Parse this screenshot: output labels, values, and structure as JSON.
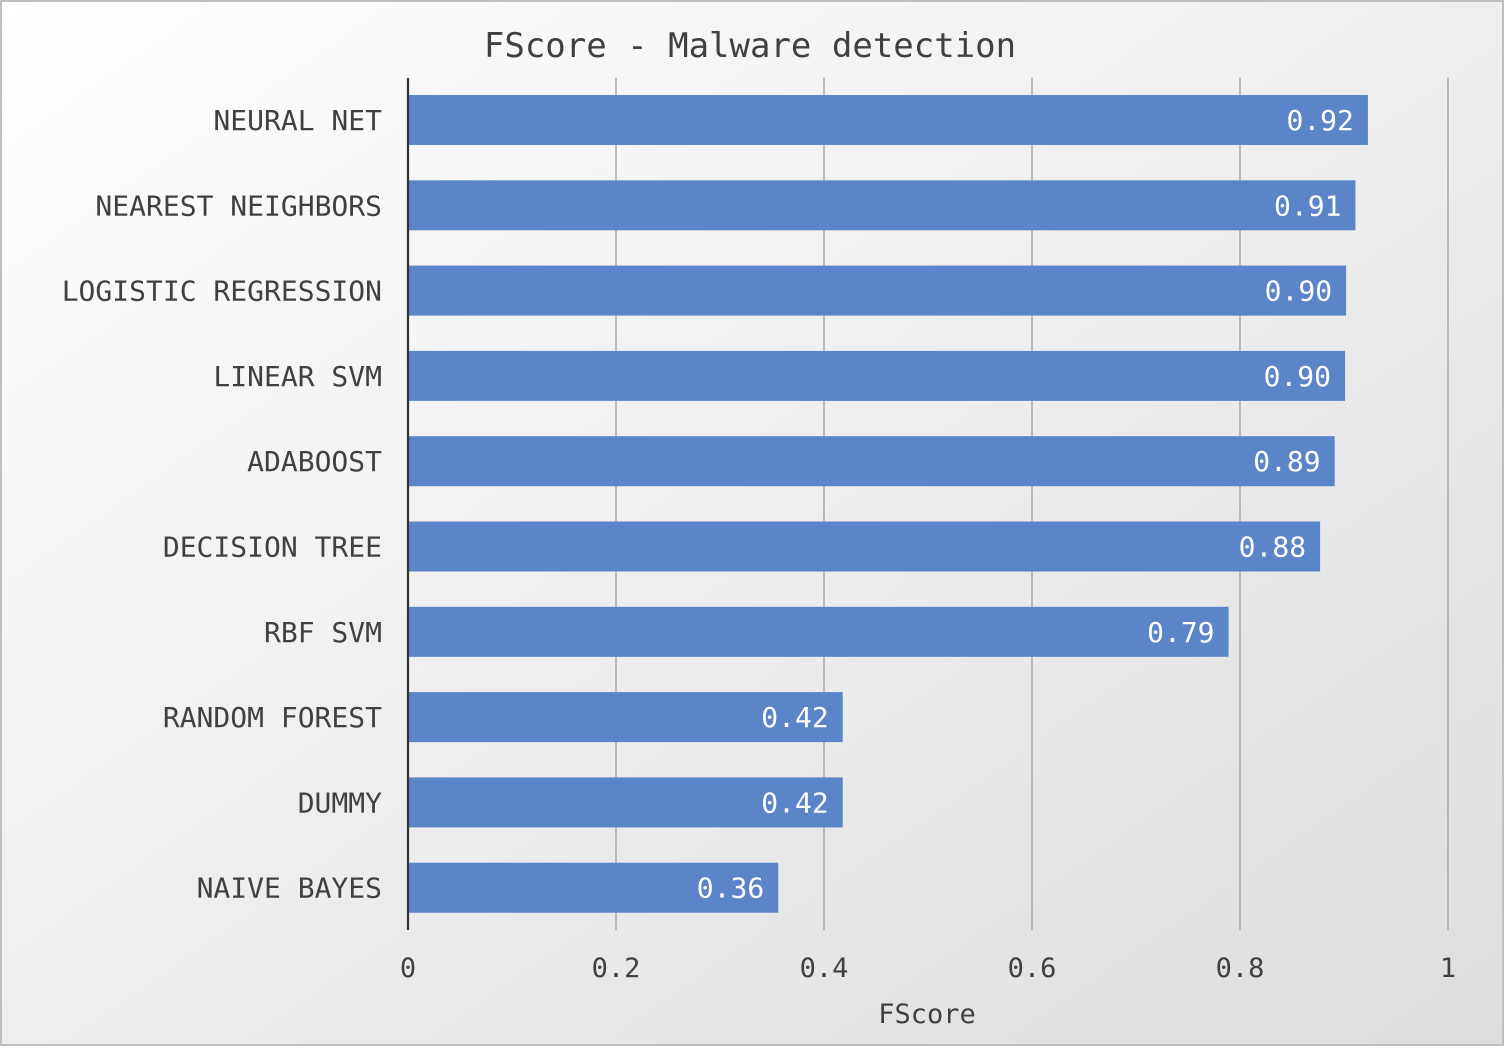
{
  "chart_data": {
    "type": "bar",
    "orientation": "horizontal",
    "title": "FScore - Malware detection",
    "xlabel": "FScore",
    "ylabel": "",
    "categories": [
      "NEURAL NET",
      "NEAREST NEIGHBORS",
      "LOGISTIC REGRESSION",
      "LINEAR SVM",
      "ADABOOST",
      "DECISION TREE",
      "RBF SVM",
      "RANDOM FOREST",
      "DUMMY",
      "NAIVE BAYES"
    ],
    "values": [
      0.923,
      0.911,
      0.902,
      0.901,
      0.891,
      0.877,
      0.789,
      0.418,
      0.418,
      0.356
    ],
    "data_labels": [
      "0.92",
      "0.91",
      "0.90",
      "0.90",
      "0.89",
      "0.88",
      "0.79",
      "0.42",
      "0.42",
      "0.36"
    ],
    "xlim": [
      0,
      1
    ],
    "xticks": [
      0,
      0.2,
      0.4,
      0.6,
      0.8,
      1
    ],
    "xtick_labels": [
      "0",
      "0.2",
      "0.4",
      "0.6",
      "0.8",
      "1"
    ],
    "grid": true,
    "legend": "none",
    "colors": {
      "bar": "#5b84c9",
      "bar_label": "#ffffff",
      "text": "#404040",
      "grid": "#9e9e9e",
      "axis": "#333333",
      "background_top": "#ffffff",
      "background_bottom": "#dddddd",
      "frame": "#bfbfbf"
    }
  }
}
